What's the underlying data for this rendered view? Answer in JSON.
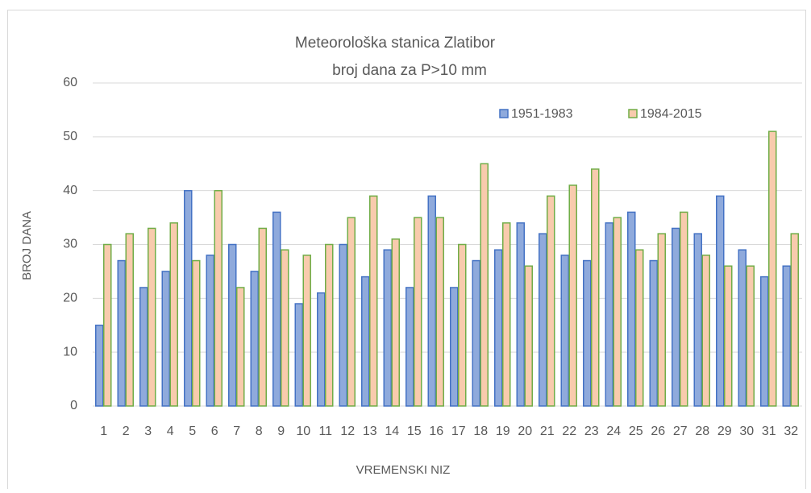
{
  "chart_data": {
    "type": "bar",
    "title": "Meteorološka stanica Zlatibor",
    "subtitle": "broj dana za P>10 mm",
    "x_label": "VREMENSKI NIZ",
    "y_label": "BROJ DANA",
    "categories": [
      "1",
      "2",
      "3",
      "4",
      "5",
      "6",
      "7",
      "8",
      "9",
      "10",
      "11",
      "12",
      "13",
      "14",
      "15",
      "16",
      "17",
      "18",
      "19",
      "20",
      "21",
      "22",
      "23",
      "24",
      "25",
      "26",
      "27",
      "28",
      "29",
      "30",
      "31",
      "32"
    ],
    "series": [
      {
        "name": "1951-1983",
        "color": "#8faadc",
        "edge": "#4472c4",
        "values": [
          15,
          27,
          22,
          25,
          40,
          28,
          30,
          25,
          36,
          19,
          21,
          30,
          24,
          29,
          22,
          39,
          22,
          27,
          29,
          34,
          32,
          28,
          27,
          34,
          36,
          27,
          33,
          32,
          39,
          29,
          24,
          26
        ]
      },
      {
        "name": "1984-2015",
        "color": "#f8cbad",
        "edge": "#70ad47",
        "values": [
          30,
          32,
          33,
          34,
          27,
          40,
          22,
          33,
          29,
          28,
          30,
          35,
          39,
          31,
          35,
          35,
          30,
          45,
          34,
          26,
          39,
          41,
          44,
          35,
          29,
          32,
          36,
          28,
          26,
          26,
          51,
          32
        ]
      }
    ],
    "ylim": [
      0,
      60
    ],
    "yticks": [
      0,
      10,
      20,
      30,
      40,
      50,
      60
    ],
    "grid": true,
    "legend": "top-right"
  }
}
